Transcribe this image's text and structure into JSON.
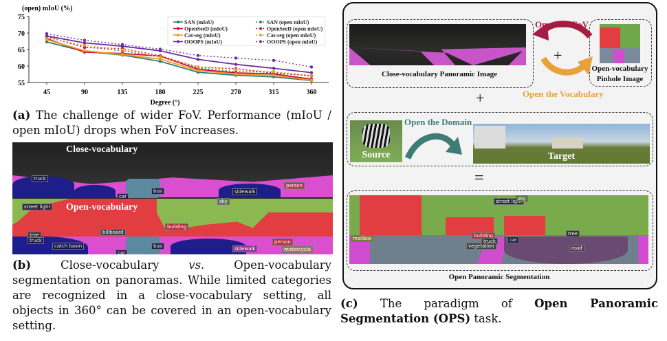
{
  "chart_data": {
    "type": "line",
    "ylabel": "(open) mIoU (%)",
    "xlabel": "Degree (°)",
    "x": [
      45,
      90,
      135,
      180,
      225,
      270,
      315,
      360
    ],
    "ylim": [
      55,
      75
    ],
    "yticks": [
      55,
      60,
      65,
      70,
      75
    ],
    "grid": false,
    "legend": "top-right",
    "series": [
      {
        "name": "SAN (mIoU)",
        "color": "#2e7b73",
        "dashed": false,
        "values": [
          67.3,
          64.4,
          63.3,
          61.4,
          58.1,
          57.2,
          56.7,
          55.6
        ]
      },
      {
        "name": "SAN (open mIoU)",
        "color": "#2e7b73",
        "dashed": true,
        "values": [
          68.7,
          65.8,
          64.6,
          62.8,
          59.4,
          58.3,
          58.1,
          56.9
        ]
      },
      {
        "name": "OpenSeeD (mIoU)",
        "color": "#c8103c",
        "dashed": false,
        "values": [
          68.3,
          64.2,
          63.8,
          63.0,
          59.0,
          57.9,
          57.6,
          56.0
        ]
      },
      {
        "name": "OpenSeeD (open mIoU)",
        "color": "#c8103c",
        "dashed": true,
        "values": [
          68.9,
          65.6,
          65.3,
          63.1,
          59.7,
          59.2,
          57.8,
          57.1
        ]
      },
      {
        "name": "Cat-seg (mIoU)",
        "color": "#f39a1e",
        "dashed": false,
        "values": [
          68.0,
          64.6,
          63.5,
          62.1,
          58.6,
          57.6,
          57.2,
          55.7
        ]
      },
      {
        "name": "Cat-seg (open mIoU)",
        "color": "#f39a1e",
        "dashed": true,
        "values": [
          68.5,
          66.3,
          64.9,
          62.8,
          59.7,
          58.9,
          58.3,
          57.1
        ]
      },
      {
        "name": "OOOPS (mIoU)",
        "color": "#6a2c9c",
        "dashed": false,
        "values": [
          69.1,
          67.0,
          66.0,
          64.6,
          62.0,
          60.5,
          59.3,
          58.0
        ]
      },
      {
        "name": "OOOPS (open mIoU)",
        "color": "#6a2c9c",
        "dashed": true,
        "values": [
          69.8,
          67.8,
          66.5,
          65.1,
          63.2,
          62.4,
          61.7,
          59.7
        ]
      }
    ]
  },
  "captions": {
    "a_tag": "(a)",
    "a_text": " The challenge of wider FoV. Performance (mIoU / open mIoU) drops when FoV increases.",
    "b_tag": "(b)",
    "b_text1": " Close-vocabulary ",
    "b_vs": "vs.",
    "b_text2": " Open-vocabulary segmentation on panoramas. While limited categories are recognized in a close-vocabulary setting, all objects in 360° can be covered in an open-vocabulary setting.",
    "c_tag": "(c)",
    "c_text1": " The paradigm of ",
    "c_bold": "Open Panoramic Segmentation (OPS)",
    "c_text2": " task."
  },
  "panel_b": {
    "close_title": "Close-vocabulary",
    "open_title": "Open-vocabulary",
    "close_labels": [
      "truck",
      "bus",
      "car",
      "sidewalk",
      "person"
    ],
    "open_labels": [
      "street light",
      "sky",
      "building",
      "billboard",
      "tree",
      "truck",
      "catch basin",
      "bus",
      "sidewalk",
      "person",
      "motorcycle",
      "car"
    ]
  },
  "panel_c": {
    "close_pano": "Close-vocabulary  Panoramic Image",
    "pinhole": "Open-vocabulary Pinhole Image",
    "open_fov": "Open the FoV",
    "open_vocab": "Open the Vocabulary",
    "open_domain": "Open the Domain",
    "source": "Source",
    "target": "Target",
    "ops": "Open Panoramic Segmentation",
    "plus": "+",
    "equals": "=",
    "pinhole_labels": [
      "building",
      "truck",
      "car",
      "vegetation"
    ],
    "ops_labels": [
      "street light",
      "sky",
      "mailbox",
      "building",
      "truck",
      "vegetation",
      "car",
      "tree",
      "road"
    ],
    "colors": {
      "fov": "#a51d43",
      "vocab": "#e9a23b",
      "domain": "#3e7d76"
    }
  }
}
